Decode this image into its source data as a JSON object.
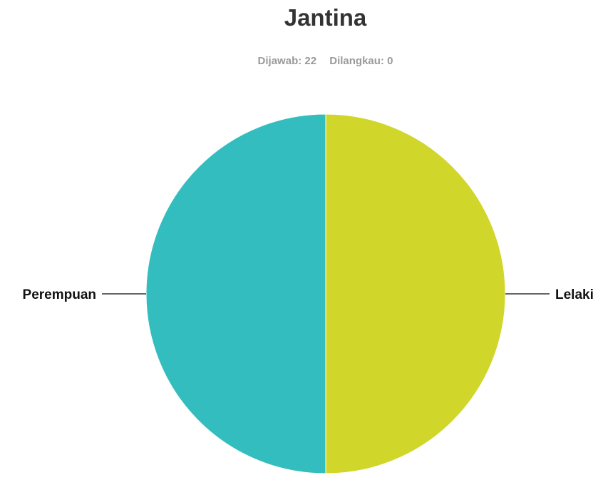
{
  "chart_data": {
    "type": "pie",
    "title": "Jantina",
    "stats": {
      "answered_label": "Dijawab: 22",
      "skipped_label": "Dilangkau: 0"
    },
    "slices": [
      {
        "label": "Lelaki",
        "value": 11,
        "color": "#d0d62a"
      },
      {
        "label": "Perempuan",
        "value": 11,
        "color": "#33bdbf"
      }
    ]
  }
}
